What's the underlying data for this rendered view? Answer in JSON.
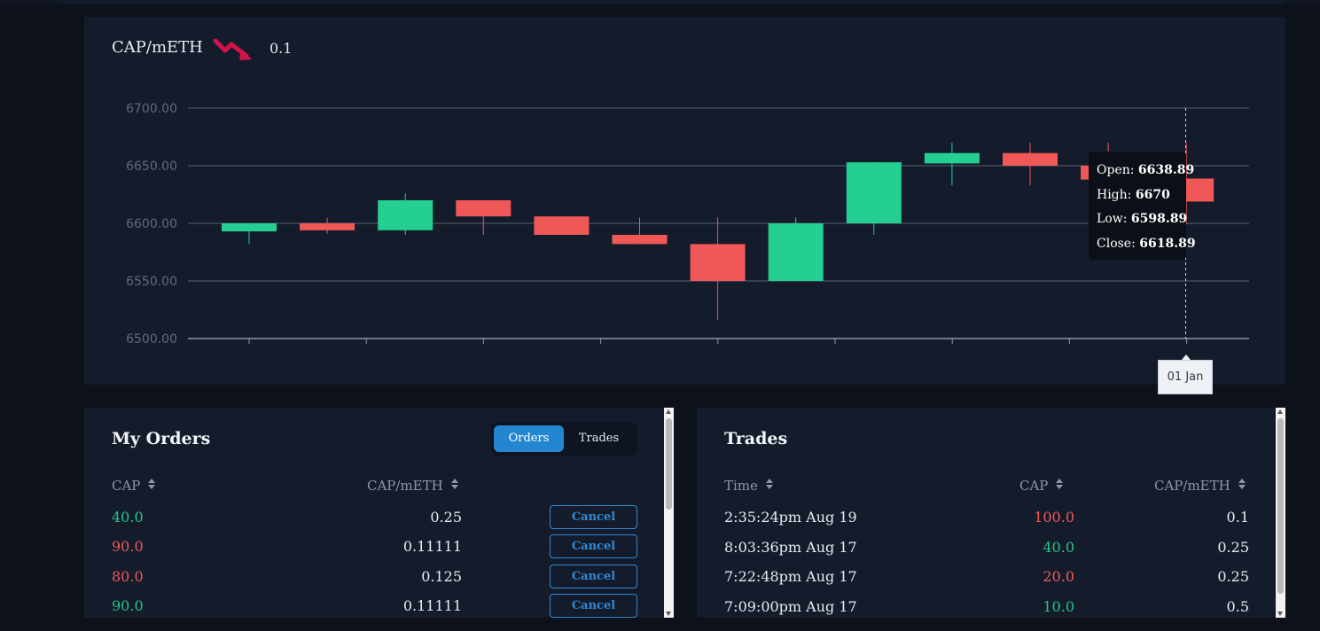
{
  "market": {
    "pair": "CAP/mETH",
    "trend_icon": "trending-down-icon",
    "last_price": "0.1"
  },
  "colors": {
    "up": "#25cf91",
    "down": "#f05858",
    "accent": "#2486d0"
  },
  "chart_data": {
    "type": "candlestick",
    "title": "",
    "xlabel": "",
    "ylabel": "",
    "ylim": [
      6500,
      6700
    ],
    "yticks": [
      "6700.00",
      "6650.00",
      "6600.00",
      "6550.00",
      "6500.00"
    ],
    "grid": true,
    "candles": [
      {
        "open": 6593,
        "high": 6600,
        "low": 6582,
        "close": 6600
      },
      {
        "open": 6600,
        "high": 6605,
        "low": 6591,
        "close": 6594
      },
      {
        "open": 6594,
        "high": 6626,
        "low": 6590,
        "close": 6620
      },
      {
        "open": 6620,
        "high": 6620,
        "low": 6590,
        "close": 6606
      },
      {
        "open": 6606,
        "high": 6606,
        "low": 6590,
        "close": 6590
      },
      {
        "open": 6590,
        "high": 6605,
        "low": 6582,
        "close": 6582
      },
      {
        "open": 6582,
        "high": 6605,
        "low": 6516,
        "close": 6550
      },
      {
        "open": 6550,
        "high": 6605,
        "low": 6550,
        "close": 6600
      },
      {
        "open": 6600,
        "high": 6653,
        "low": 6590,
        "close": 6653
      },
      {
        "open": 6652,
        "high": 6670,
        "low": 6633,
        "close": 6661
      },
      {
        "open": 6661,
        "high": 6670,
        "low": 6633,
        "close": 6650
      },
      {
        "open": 6650,
        "high": 6670,
        "low": 6638,
        "close": 6638
      },
      {
        "open": 6638.89,
        "high": 6670,
        "low": 6598.89,
        "close": 6618.89
      }
    ],
    "tooltip": {
      "open_label": "Open:",
      "open": "6638.89",
      "high_label": "High:",
      "high": "6670",
      "low_label": "Low:",
      "low": "6598.89",
      "close_label": "Close:",
      "close": "6618.89"
    },
    "crosshair_date": "01 Jan"
  },
  "orders": {
    "title": "My Orders",
    "tabs": [
      "Orders",
      "Trades"
    ],
    "active_tab": "Orders",
    "columns": [
      "CAP",
      "CAP/mETH"
    ],
    "cancel_label": "Cancel",
    "rows": [
      {
        "cap": "40.0",
        "side": "buy",
        "price": "0.25"
      },
      {
        "cap": "90.0",
        "side": "sell",
        "price": "0.11111"
      },
      {
        "cap": "80.0",
        "side": "sell",
        "price": "0.125"
      },
      {
        "cap": "90.0",
        "side": "buy",
        "price": "0.11111"
      }
    ]
  },
  "trades": {
    "title": "Trades",
    "columns": [
      "Time",
      "CAP",
      "CAP/mETH"
    ],
    "rows": [
      {
        "time": "2:35:24pm Aug 19",
        "cap": "100.0",
        "side": "sell",
        "price": "0.1"
      },
      {
        "time": "8:03:36pm Aug 17",
        "cap": "40.0",
        "side": "buy",
        "price": "0.25"
      },
      {
        "time": "7:22:48pm Aug 17",
        "cap": "20.0",
        "side": "sell",
        "price": "0.25"
      },
      {
        "time": "7:09:00pm Aug 17",
        "cap": "10.0",
        "side": "buy",
        "price": "0.5"
      }
    ]
  }
}
